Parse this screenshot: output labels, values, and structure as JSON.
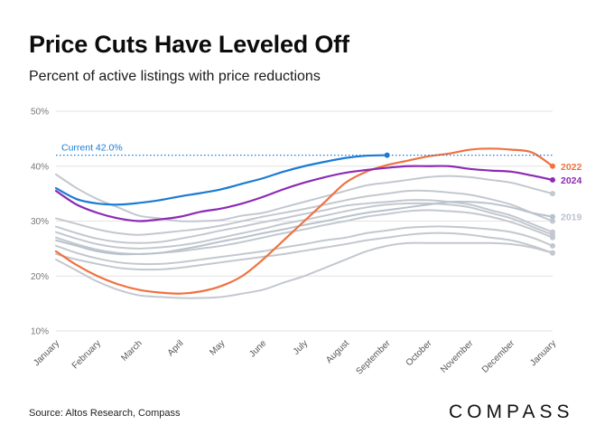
{
  "header": {
    "title": "Price Cuts Have Leveled Off",
    "subtitle": "Percent of active listings with price reductions"
  },
  "footer": {
    "source": "Source: Altos Research, Compass",
    "brand": "COMPASS"
  },
  "chart_data": {
    "type": "line",
    "title": "Price Cuts Have Leveled Off",
    "subtitle": "Percent of active listings with price reductions",
    "x_categories": [
      "January",
      "February",
      "March",
      "April",
      "May",
      "June",
      "July",
      "August",
      "September",
      "October",
      "November",
      "December",
      "January"
    ],
    "xlim": [
      0,
      12
    ],
    "ylim": [
      10,
      50
    ],
    "yticks": [
      10,
      20,
      30,
      40,
      50
    ],
    "ytick_labels": [
      "10%",
      "20%",
      "30%",
      "40%",
      "50%"
    ],
    "grid": true,
    "reference_line": {
      "value": 42.0,
      "label": "Current 42.0%",
      "color": "#1a7bd4"
    },
    "series": [
      {
        "name": "",
        "color": "#c3c8cf",
        "values": [
          [
            0,
            38.5
          ],
          [
            0.5,
            36
          ],
          [
            1,
            34
          ],
          [
            1.5,
            32.5
          ],
          [
            2,
            31
          ],
          [
            2.5,
            30.5
          ],
          [
            3,
            30
          ],
          [
            3.5,
            30
          ],
          [
            4,
            30.2
          ],
          [
            4.5,
            31
          ],
          [
            5,
            31.5
          ],
          [
            5.5,
            32.5
          ],
          [
            6,
            33.5
          ],
          [
            6.5,
            34.5
          ],
          [
            7,
            35.5
          ],
          [
            7.5,
            36.5
          ],
          [
            8,
            37
          ],
          [
            8.5,
            37.5
          ],
          [
            9,
            38
          ],
          [
            9.5,
            38.2
          ],
          [
            10,
            38
          ],
          [
            10.5,
            37.5
          ],
          [
            11,
            37
          ],
          [
            11.5,
            36
          ],
          [
            12,
            35
          ]
        ]
      },
      {
        "name": "",
        "color": "#c3c8cf",
        "values": [
          [
            0,
            30.5
          ],
          [
            0.5,
            29.5
          ],
          [
            1,
            28.5
          ],
          [
            1.5,
            27.8
          ],
          [
            2,
            27.5
          ],
          [
            2.5,
            27.8
          ],
          [
            3,
            28.2
          ],
          [
            3.5,
            28.6
          ],
          [
            4,
            29.2
          ],
          [
            4.5,
            30
          ],
          [
            5,
            30.8
          ],
          [
            5.5,
            31.5
          ],
          [
            6,
            32.2
          ],
          [
            6.5,
            33
          ],
          [
            7,
            33.8
          ],
          [
            7.5,
            34.5
          ],
          [
            8,
            35
          ],
          [
            8.5,
            35.5
          ],
          [
            9,
            35.5
          ],
          [
            9.5,
            35.2
          ],
          [
            10,
            34.8
          ],
          [
            10.5,
            34
          ],
          [
            11,
            33
          ],
          [
            11.5,
            31.5
          ],
          [
            12,
            30
          ]
        ]
      },
      {
        "name": "",
        "color": "#c3c8cf",
        "values": [
          [
            0,
            29
          ],
          [
            0.5,
            27.8
          ],
          [
            1,
            26.8
          ],
          [
            1.5,
            26.2
          ],
          [
            2,
            26
          ],
          [
            2.5,
            26.2
          ],
          [
            3,
            26.8
          ],
          [
            3.5,
            27.5
          ],
          [
            4,
            28.3
          ],
          [
            4.5,
            29
          ],
          [
            5,
            29.8
          ],
          [
            5.5,
            30.5
          ],
          [
            6,
            31.3
          ],
          [
            6.5,
            32
          ],
          [
            7,
            32.8
          ],
          [
            7.5,
            33.2
          ],
          [
            8,
            33.5
          ],
          [
            8.5,
            33.8
          ],
          [
            9,
            33.8
          ],
          [
            9.5,
            33.5
          ],
          [
            10,
            33
          ],
          [
            10.5,
            32
          ],
          [
            11,
            31
          ],
          [
            11.5,
            29.5
          ],
          [
            12,
            28
          ]
        ]
      },
      {
        "name": "",
        "color": "#c3c8cf",
        "values": [
          [
            0,
            28
          ],
          [
            0.5,
            26.8
          ],
          [
            1,
            25.8
          ],
          [
            1.5,
            25.2
          ],
          [
            2,
            25
          ],
          [
            2.5,
            25.2
          ],
          [
            3,
            25.6
          ],
          [
            3.5,
            26.2
          ],
          [
            4,
            27
          ],
          [
            4.5,
            27.8
          ],
          [
            5,
            28.6
          ],
          [
            5.5,
            29.5
          ],
          [
            6,
            30.2
          ],
          [
            6.5,
            31
          ],
          [
            7,
            31.8
          ],
          [
            7.5,
            32.5
          ],
          [
            8,
            33
          ],
          [
            8.5,
            33.2
          ],
          [
            9,
            33.2
          ],
          [
            9.5,
            33
          ],
          [
            10,
            32.5
          ],
          [
            10.5,
            31.5
          ],
          [
            11,
            30.5
          ],
          [
            11.5,
            29
          ],
          [
            12,
            27.5
          ]
        ]
      },
      {
        "name": "",
        "color": "#c3c8cf",
        "values": [
          [
            0,
            27
          ],
          [
            0.5,
            25.8
          ],
          [
            1,
            24.8
          ],
          [
            1.5,
            24.2
          ],
          [
            2,
            24
          ],
          [
            2.5,
            24.2
          ],
          [
            3,
            24.5
          ],
          [
            3.5,
            25
          ],
          [
            4,
            25.5
          ],
          [
            4.5,
            26.2
          ],
          [
            5,
            27
          ],
          [
            5.5,
            27.8
          ],
          [
            6,
            28.5
          ],
          [
            6.5,
            29.3
          ],
          [
            7,
            30
          ],
          [
            7.5,
            30.8
          ],
          [
            8,
            31.3
          ],
          [
            8.5,
            31.8
          ],
          [
            9,
            32
          ],
          [
            9.5,
            31.8
          ],
          [
            10,
            31.5
          ],
          [
            10.5,
            30.8
          ],
          [
            11,
            29.8
          ],
          [
            11.5,
            28.5
          ],
          [
            12,
            27
          ]
        ]
      },
      {
        "name": "",
        "color": "#c3c8cf",
        "values": [
          [
            0,
            25.5
          ],
          [
            0.5,
            24.2
          ],
          [
            1,
            23.2
          ],
          [
            1.5,
            22.5
          ],
          [
            2,
            22.2
          ],
          [
            2.5,
            22.2
          ],
          [
            3,
            22.5
          ],
          [
            3.5,
            23
          ],
          [
            4,
            23.5
          ],
          [
            4.5,
            24
          ],
          [
            5,
            24.5
          ],
          [
            5.5,
            25.2
          ],
          [
            6,
            25.8
          ],
          [
            6.5,
            26.5
          ],
          [
            7,
            27
          ],
          [
            7.5,
            27.8
          ],
          [
            8,
            28.3
          ],
          [
            8.5,
            28.8
          ],
          [
            9,
            29
          ],
          [
            9.5,
            29
          ],
          [
            10,
            28.8
          ],
          [
            10.5,
            28.5
          ],
          [
            11,
            28
          ],
          [
            11.5,
            27
          ],
          [
            12,
            25.5
          ]
        ]
      },
      {
        "name": "",
        "color": "#c3c8cf",
        "values": [
          [
            0,
            24
          ],
          [
            0.5,
            23
          ],
          [
            1,
            22.2
          ],
          [
            1.5,
            21.5
          ],
          [
            2,
            21.2
          ],
          [
            2.5,
            21.2
          ],
          [
            3,
            21.5
          ],
          [
            3.5,
            22
          ],
          [
            4,
            22.5
          ],
          [
            4.5,
            23
          ],
          [
            5,
            23.5
          ],
          [
            5.5,
            24
          ],
          [
            6,
            24.6
          ],
          [
            6.5,
            25.2
          ],
          [
            7,
            25.8
          ],
          [
            7.5,
            26.5
          ],
          [
            8,
            27
          ],
          [
            8.5,
            27.5
          ],
          [
            9,
            27.8
          ],
          [
            9.5,
            27.8
          ],
          [
            10,
            27.5
          ],
          [
            10.5,
            27
          ],
          [
            11,
            26.5
          ],
          [
            11.5,
            25.5
          ],
          [
            12,
            24.2
          ]
        ]
      },
      {
        "name": "",
        "color": "#c3c8cf",
        "values": [
          [
            0,
            23
          ],
          [
            0.5,
            21
          ],
          [
            1,
            19
          ],
          [
            1.5,
            17.5
          ],
          [
            2,
            16.5
          ],
          [
            2.5,
            16.2
          ],
          [
            3,
            16
          ],
          [
            3.5,
            16
          ],
          [
            4,
            16.2
          ],
          [
            4.5,
            16.8
          ],
          [
            5,
            17.5
          ],
          [
            5.5,
            18.8
          ],
          [
            6,
            20
          ],
          [
            6.5,
            21.5
          ],
          [
            7,
            23
          ],
          [
            7.5,
            24.5
          ],
          [
            8,
            25.5
          ],
          [
            8.5,
            26
          ],
          [
            9,
            26
          ],
          [
            9.5,
            26
          ],
          [
            10,
            26
          ],
          [
            10.5,
            26
          ],
          [
            11,
            25.8
          ],
          [
            11.5,
            25.2
          ],
          [
            12,
            24.2
          ]
        ]
      },
      {
        "name": "2019",
        "color": "#b9c2cc",
        "values": [
          [
            0,
            26.5
          ],
          [
            0.5,
            25.5
          ],
          [
            1,
            24.5
          ],
          [
            1.5,
            24
          ],
          [
            2,
            24
          ],
          [
            2.5,
            24.2
          ],
          [
            3,
            24.8
          ],
          [
            3.5,
            25.5
          ],
          [
            4,
            26.3
          ],
          [
            4.5,
            27
          ],
          [
            5,
            27.8
          ],
          [
            5.5,
            28.5
          ],
          [
            6,
            29.3
          ],
          [
            6.5,
            30
          ],
          [
            7,
            30.8
          ],
          [
            7.5,
            31.5
          ],
          [
            8,
            32
          ],
          [
            8.5,
            32.5
          ],
          [
            9,
            33
          ],
          [
            9.5,
            33.5
          ],
          [
            10,
            33.5
          ],
          [
            10.5,
            33.2
          ],
          [
            11,
            32.5
          ],
          [
            11.5,
            31.5
          ],
          [
            12,
            30.8
          ]
        ]
      },
      {
        "name": "2022",
        "color": "#ef7240",
        "values": [
          [
            0,
            24.5
          ],
          [
            0.5,
            22
          ],
          [
            1,
            20
          ],
          [
            1.5,
            18.5
          ],
          [
            2,
            17.5
          ],
          [
            2.5,
            17
          ],
          [
            3,
            16.8
          ],
          [
            3.5,
            17.2
          ],
          [
            4,
            18.2
          ],
          [
            4.5,
            20
          ],
          [
            5,
            23
          ],
          [
            5.5,
            26.5
          ],
          [
            6,
            30
          ],
          [
            6.5,
            33.5
          ],
          [
            7,
            37
          ],
          [
            7.5,
            39
          ],
          [
            8,
            40.2
          ],
          [
            8.5,
            41
          ],
          [
            9,
            41.8
          ],
          [
            9.5,
            42.3
          ],
          [
            10,
            43
          ],
          [
            10.5,
            43.2
          ],
          [
            11,
            43
          ],
          [
            11.5,
            42.5
          ],
          [
            12,
            40
          ]
        ]
      },
      {
        "name": "2024",
        "color": "#8b2bb5",
        "values": [
          [
            0,
            35.5
          ],
          [
            0.5,
            33
          ],
          [
            1,
            31.5
          ],
          [
            1.5,
            30.5
          ],
          [
            2,
            30
          ],
          [
            2.5,
            30.3
          ],
          [
            3,
            30.8
          ],
          [
            3.5,
            31.7
          ],
          [
            4,
            32.3
          ],
          [
            4.5,
            33.2
          ],
          [
            5,
            34.4
          ],
          [
            5.5,
            35.8
          ],
          [
            6,
            37
          ],
          [
            6.5,
            38
          ],
          [
            7,
            38.8
          ],
          [
            7.5,
            39.3
          ],
          [
            8,
            39.7
          ],
          [
            8.5,
            40
          ],
          [
            9,
            40
          ],
          [
            9.5,
            40
          ],
          [
            10,
            39.5
          ],
          [
            10.5,
            39.2
          ],
          [
            11,
            39
          ],
          [
            11.5,
            38.3
          ],
          [
            12,
            37.5
          ]
        ]
      },
      {
        "name": "",
        "color": "#1a7bd4",
        "values": [
          [
            0,
            36
          ],
          [
            0.5,
            34
          ],
          [
            1,
            33.2
          ],
          [
            1.5,
            33
          ],
          [
            2,
            33.3
          ],
          [
            2.5,
            33.8
          ],
          [
            3,
            34.5
          ],
          [
            3.5,
            35.1
          ],
          [
            4,
            35.8
          ],
          [
            4.5,
            36.8
          ],
          [
            5,
            37.8
          ],
          [
            5.5,
            39
          ],
          [
            6,
            40
          ],
          [
            6.5,
            40.8
          ],
          [
            7,
            41.5
          ],
          [
            7.5,
            41.9
          ],
          [
            8,
            42
          ]
        ]
      }
    ],
    "end_labels": [
      {
        "text": "2022",
        "series": "2022",
        "color": "#ef7240"
      },
      {
        "text": "2024",
        "series": "2024",
        "color": "#8b2bb5"
      },
      {
        "text": "2019",
        "series": "2019",
        "color": "#b9c2cc"
      }
    ]
  }
}
